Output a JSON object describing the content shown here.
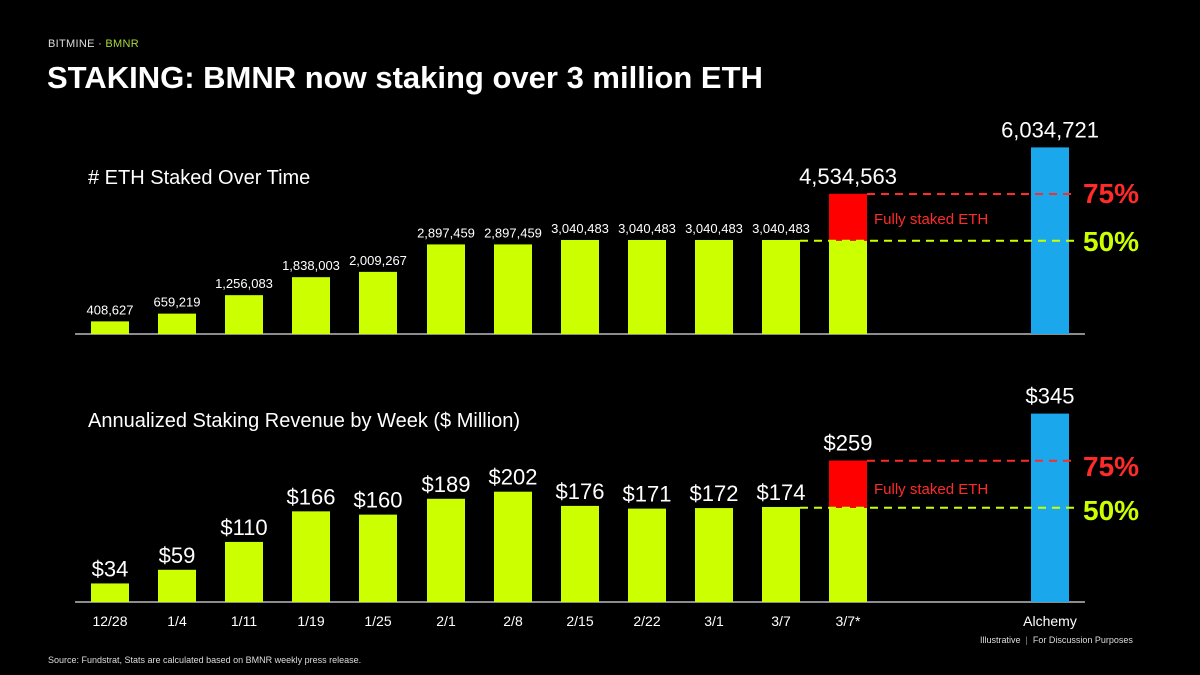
{
  "header": {
    "brand": "BITMINE",
    "separator": "·",
    "ticker": "BMNR",
    "title": "STAKING: BMNR now staking over 3 million ETH"
  },
  "footer": {
    "source": "Source: Fundstrat, Stats are calculated based on BMNR weekly press release.",
    "note_left": "Illustrative",
    "note_sep": "|",
    "note_right": "For Discussion Purposes"
  },
  "colors": {
    "bar": "#ccff00",
    "highlight": "#ff0000",
    "alchemy": "#1aa7ec",
    "pct75": "#ff2a2a",
    "pct50": "#ccff00",
    "background": "#000000"
  },
  "chart_data": [
    {
      "type": "bar",
      "title": "# ETH Staked Over Time",
      "categories": [
        "12/28",
        "1/4",
        "1/11",
        "1/19",
        "1/25",
        "2/1",
        "2/8",
        "2/15",
        "2/22",
        "3/1",
        "3/7",
        "3/7*",
        "Alchemy"
      ],
      "values": [
        408627,
        659219,
        1256083,
        1838003,
        2009267,
        2897459,
        2897459,
        3040483,
        3040483,
        3040483,
        3040483,
        4534563,
        6034721
      ],
      "labels": [
        "408,627",
        "659,219",
        "1,256,083",
        "1,838,003",
        "2,009,267",
        "2,897,459",
        "2,897,459",
        "3,040,483",
        "3,040,483",
        "3,040,483",
        "3,040,483",
        "4,534,563",
        "6,034,721"
      ],
      "reference_lines": [
        {
          "label": "75%",
          "fraction": 0.75
        },
        {
          "label": "50%",
          "fraction": 0.5
        }
      ],
      "annotation": "Fully staked ETH",
      "grid": false
    },
    {
      "type": "bar",
      "title": "Annualized Staking Revenue by Week ($ Million)",
      "categories": [
        "12/28",
        "1/4",
        "1/11",
        "1/19",
        "1/25",
        "2/1",
        "2/8",
        "2/15",
        "2/22",
        "3/1",
        "3/7",
        "3/7*",
        "Alchemy"
      ],
      "values": [
        34,
        59,
        110,
        166,
        160,
        189,
        202,
        176,
        171,
        172,
        174,
        259,
        345
      ],
      "labels": [
        "$34",
        "$59",
        "$110",
        "$166",
        "$160",
        "$189",
        "$202",
        "$176",
        "$171",
        "$172",
        "$174",
        "$259",
        "$345"
      ],
      "reference_lines": [
        {
          "label": "75%",
          "fraction": 0.75
        },
        {
          "label": "50%",
          "fraction": 0.5
        }
      ],
      "annotation": "Fully staked ETH",
      "grid": false
    }
  ]
}
